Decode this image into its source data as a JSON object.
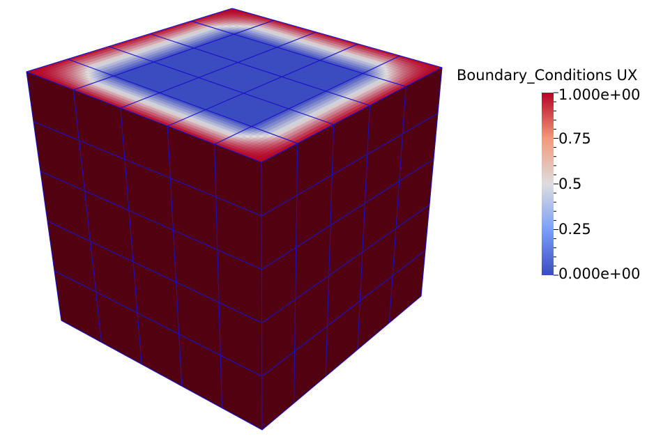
{
  "scalar_bar": {
    "title": "Boundary_Conditions UX",
    "labels": [
      "1.000e+00",
      "0.75",
      "0.5",
      "0.25",
      "0.000e+00"
    ],
    "values": [
      1.0,
      0.75,
      0.5,
      0.25,
      0.0
    ],
    "range": [
      0,
      1
    ],
    "colormap": [
      "#3b4cc0",
      "#dddddd",
      "#b40426"
    ],
    "minor_ticks_per_interval": 5
  },
  "mesh": {
    "cells_per_edge": 5,
    "edge_color": "#1a10c8",
    "side_face_color": "#520111",
    "top_face": "gradient"
  }
}
